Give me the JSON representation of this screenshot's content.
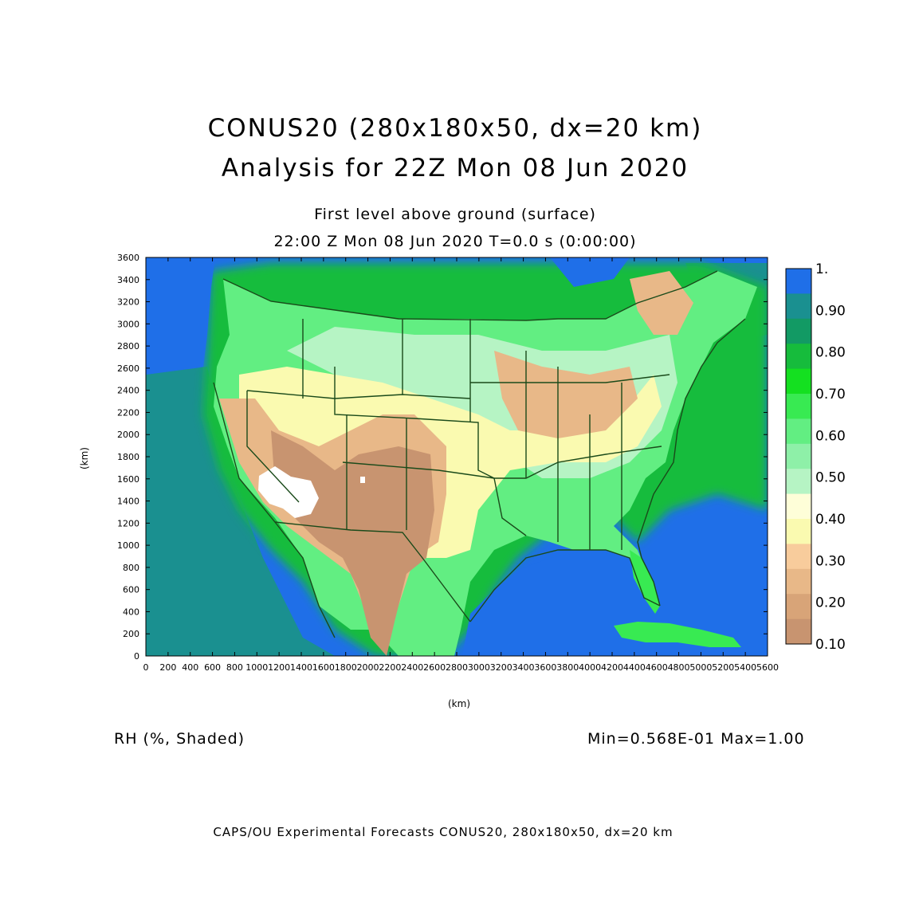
{
  "title": {
    "line1": "CONUS20 (280x180x50, dx=20 km)",
    "line2": "Analysis for 22Z Mon 08 Jun 2020"
  },
  "subtitle": {
    "level": "First level above ground (surface)",
    "time": "22:00 Z Mon 08 Jun 2020    T=0.0 s (0:00:00)"
  },
  "axes": {
    "xlabel": "(km)",
    "ylabel": "(km)",
    "x_ticks": [
      0,
      200,
      400,
      600,
      800,
      1000,
      1200,
      1400,
      1600,
      1800,
      2000,
      2200,
      2400,
      2600,
      2800,
      3000,
      3200,
      3400,
      3600,
      3800,
      4000,
      4200,
      4400,
      4600,
      4800,
      5000,
      5200,
      5400,
      5600
    ],
    "y_ticks": [
      0,
      200,
      400,
      600,
      800,
      1000,
      1200,
      1400,
      1600,
      1800,
      2000,
      2200,
      2400,
      2600,
      2800,
      3000,
      3200,
      3400,
      3600
    ],
    "xlim": [
      0,
      5600
    ],
    "ylim": [
      0,
      3600
    ]
  },
  "colorbar": {
    "labels": [
      "1.",
      "0.90",
      "0.80",
      "0.70",
      "0.60",
      "0.50",
      "0.40",
      "0.30",
      "0.20",
      "0.10"
    ],
    "colors": [
      "#1f6fe8",
      "#1a9090",
      "#129a64",
      "#16bc3c",
      "#14e020",
      "#38ea52",
      "#62ee82",
      "#8ef0a8",
      "#b6f4c4",
      "#fefed8",
      "#fafab0",
      "#f8cc9c",
      "#e8b888",
      "#d8a478",
      "#c89470"
    ]
  },
  "field_info": {
    "left": "RH (%, Shaded)",
    "right": "Min=0.568E-01 Max=1.00"
  },
  "footer": "CAPS/OU Experimental Forecasts  CONUS20, 280x180x50, dx=20 km",
  "map_colors": {
    "ocean": "#1f6fe8",
    "teal": "#1a9090",
    "green": "#16bc3c",
    "bright_green": "#14e020",
    "mid_green": "#62ee82",
    "light_green": "#b6f4c4",
    "pale_yellow": "#fafab0",
    "tan": "#e8b888",
    "brown": "#c89470",
    "white": "#ffffff",
    "boundary": "#1a4a1a"
  }
}
